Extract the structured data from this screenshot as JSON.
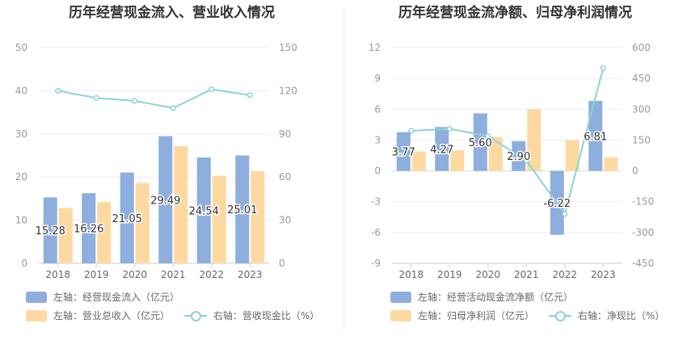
{
  "titles": {
    "left": "历年经营现金流入、营业收入情况",
    "right": "历年经营现金流净额、归母净利润情况"
  },
  "colors": {
    "bar_blue": "#8eaedd",
    "bar_yellow": "#fdd9a1",
    "line_teal": "#8ad3d8",
    "axis_text": "#999999",
    "grid": "#eeeeee"
  },
  "legend": {
    "left": {
      "item1": "左轴：经营现金流入（亿元）",
      "item2": "左轴：营业总收入（亿元）",
      "item3": "右轴：营收现金比（%）"
    },
    "right": {
      "item1": "左轴：经营活动现金流净额（亿元）",
      "item2": "左轴：归母净利润（亿元）",
      "item3": "右轴：净现比（%）"
    }
  },
  "chart_data": [
    {
      "type": "bar",
      "title": "历年经营现金流入、营业收入情况",
      "categories": [
        "2018",
        "2019",
        "2020",
        "2021",
        "2022",
        "2023"
      ],
      "ylim_left": [
        0,
        50
      ],
      "left_ticks": [
        0,
        10,
        20,
        30,
        40,
        50
      ],
      "ylim_right": [
        0,
        150
      ],
      "right_ticks": [
        0,
        30,
        60,
        90,
        120,
        150
      ],
      "grid": true,
      "series": [
        {
          "name": "左轴：经营现金流入（亿元）",
          "kind": "bar",
          "axis": "left",
          "values": [
            15.28,
            16.26,
            21.05,
            29.49,
            24.54,
            25.01
          ],
          "labels": [
            "15.28",
            "16.26",
            "21.05",
            "29.49",
            "24.54",
            "25.01"
          ]
        },
        {
          "name": "左轴：营业总收入（亿元）",
          "kind": "bar",
          "axis": "left",
          "values": [
            12.8,
            14.2,
            18.6,
            27.2,
            20.3,
            21.4
          ]
        },
        {
          "name": "右轴：营收现金比（%）",
          "kind": "line",
          "axis": "right",
          "values": [
            120,
            115,
            113,
            108,
            121,
            117
          ]
        }
      ]
    },
    {
      "type": "bar",
      "title": "历年经营现金流净额、归母净利润情况",
      "categories": [
        "2018",
        "2019",
        "2020",
        "2021",
        "2022",
        "2023"
      ],
      "ylim_left": [
        -9,
        12
      ],
      "left_ticks": [
        -9,
        -6,
        -3,
        0,
        3,
        6,
        9,
        12
      ],
      "ylim_right": [
        -450,
        600
      ],
      "right_ticks": [
        -450,
        -300,
        -150,
        0,
        150,
        300,
        450,
        600
      ],
      "grid": true,
      "series": [
        {
          "name": "左轴：经营活动现金流净额（亿元）",
          "kind": "bar",
          "axis": "left",
          "values": [
            3.77,
            4.27,
            5.6,
            2.9,
            -6.22,
            6.81
          ],
          "labels": [
            "3.77",
            "4.27",
            "5.60",
            "2.90",
            "-6.22",
            "6.81"
          ]
        },
        {
          "name": "左轴：归母净利润（亿元）",
          "kind": "bar",
          "axis": "left",
          "values": [
            1.9,
            2.0,
            3.3,
            6.0,
            3.0,
            1.3
          ]
        },
        {
          "name": "右轴：净现比（%）",
          "kind": "line",
          "axis": "right",
          "values": [
            195,
            205,
            170,
            50,
            -210,
            500
          ]
        }
      ]
    }
  ]
}
